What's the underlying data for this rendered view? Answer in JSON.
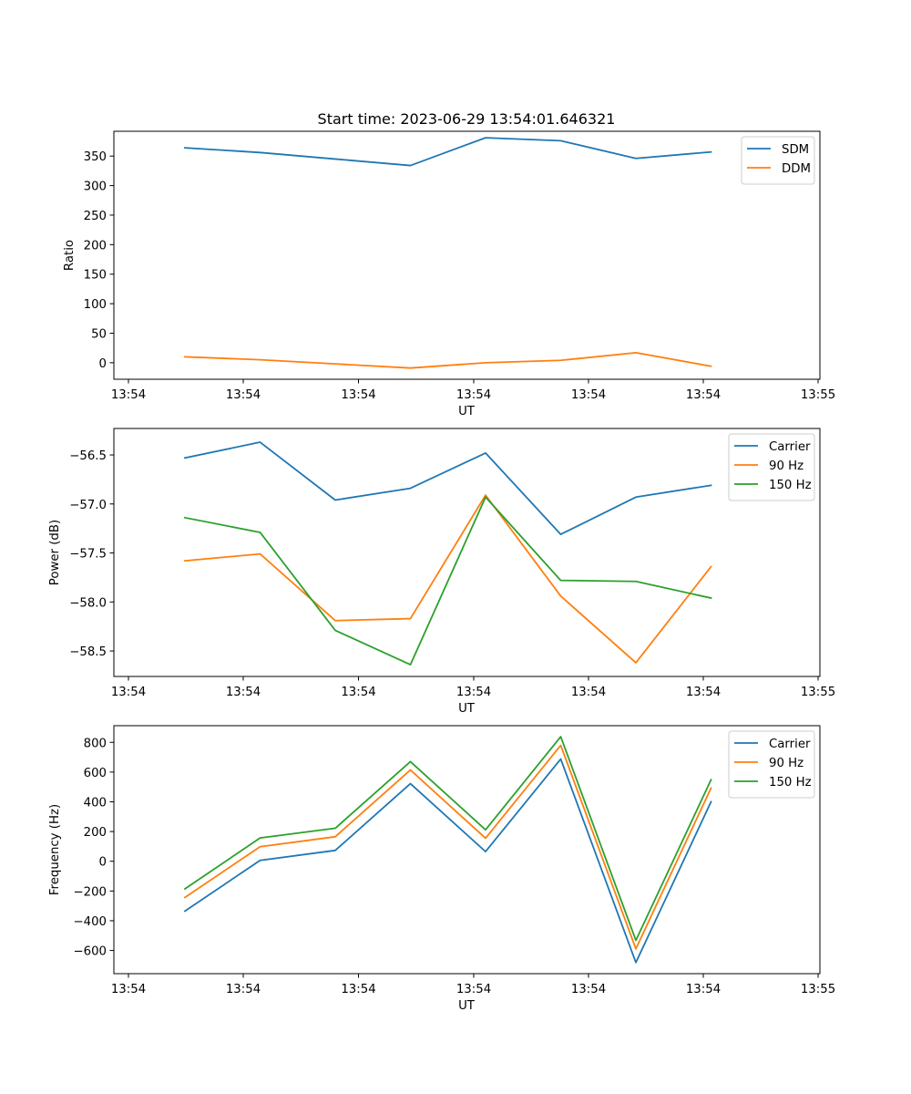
{
  "figure": {
    "title": "Start time: 2023-06-29 13:54:01.646321"
  },
  "chart_data": [
    {
      "type": "line",
      "title": "Start time: 2023-06-29 13:54:01.646321",
      "xlabel": "UT",
      "ylabel": "Ratio",
      "xticklabels": [
        "13:54",
        "13:54",
        "13:54",
        "13:54",
        "13:54",
        "13:54",
        "13:55"
      ],
      "yticks": [
        0,
        50,
        100,
        150,
        200,
        250,
        300,
        350
      ],
      "ytickformat": "int",
      "ylim": [
        -28,
        392
      ],
      "grid": false,
      "legend_position": "top-right",
      "series": [
        {
          "name": "SDM",
          "color": "#1f77b4",
          "values": [
            364,
            356,
            345,
            334,
            381,
            376,
            346,
            357
          ]
        },
        {
          "name": "DDM",
          "color": "#ff7f0e",
          "values": [
            10,
            5,
            -2,
            -9,
            0,
            4,
            17,
            -6
          ]
        }
      ]
    },
    {
      "type": "line",
      "xlabel": "UT",
      "ylabel": "Power (dB)",
      "xticklabels": [
        "13:54",
        "13:54",
        "13:54",
        "13:54",
        "13:54",
        "13:54",
        "13:55"
      ],
      "yticks": [
        -56.5,
        -57.0,
        -57.5,
        -58.0,
        -58.5
      ],
      "ytickformat": "1dp",
      "ylim": [
        -58.76,
        -56.23
      ],
      "grid": false,
      "legend_position": "top-right",
      "series": [
        {
          "name": "Carrier",
          "color": "#1f77b4",
          "values": [
            -56.53,
            -56.37,
            -56.96,
            -56.84,
            -56.48,
            -57.31,
            -56.93,
            -56.81
          ]
        },
        {
          "name": "90 Hz",
          "color": "#ff7f0e",
          "values": [
            -57.58,
            -57.51,
            -58.19,
            -58.17,
            -56.91,
            -57.94,
            -58.62,
            -57.64
          ]
        },
        {
          "name": "150 Hz",
          "color": "#2ca02c",
          "values": [
            -57.14,
            -57.29,
            -58.29,
            -58.64,
            -56.93,
            -57.78,
            -57.79,
            -57.96
          ]
        }
      ]
    },
    {
      "type": "line",
      "xlabel": "UT",
      "ylabel": "Frequency (Hz)",
      "xticklabels": [
        "13:54",
        "13:54",
        "13:54",
        "13:54",
        "13:54",
        "13:54",
        "13:55"
      ],
      "yticks": [
        800,
        600,
        400,
        200,
        0,
        -200,
        -400,
        -600
      ],
      "ytickformat": "int",
      "ylim": [
        -756,
        912
      ],
      "grid": false,
      "legend_position": "top-right",
      "series": [
        {
          "name": "Carrier",
          "color": "#1f77b4",
          "values": [
            -335,
            6,
            73,
            522,
            65,
            688,
            -681,
            400
          ]
        },
        {
          "name": "90 Hz",
          "color": "#ff7f0e",
          "values": [
            -243,
            98,
            165,
            614,
            155,
            780,
            -589,
            492
          ]
        },
        {
          "name": "150 Hz",
          "color": "#2ca02c",
          "values": [
            -186,
            157,
            222,
            670,
            212,
            838,
            -532,
            548
          ]
        }
      ]
    }
  ]
}
